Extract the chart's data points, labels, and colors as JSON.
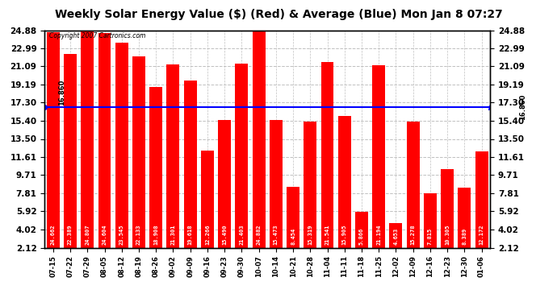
{
  "title": "Weekly Solar Energy Value ($) (Red) & Average (Blue) Mon Jan 8 07:27",
  "copyright": "Copyright 2007 Cartronics.com",
  "categories": [
    "07-15",
    "07-22",
    "07-29",
    "08-05",
    "08-12",
    "08-19",
    "08-26",
    "09-02",
    "09-09",
    "09-16",
    "09-23",
    "09-30",
    "10-07",
    "10-14",
    "10-21",
    "10-28",
    "11-04",
    "11-11",
    "11-18",
    "11-25",
    "12-02",
    "12-09",
    "12-16",
    "12-23",
    "12-30",
    "01-06"
  ],
  "values": [
    24.662,
    22.389,
    24.807,
    24.604,
    23.545,
    22.133,
    18.908,
    21.301,
    19.618,
    12.266,
    15.49,
    21.403,
    24.882,
    15.473,
    8.454,
    15.319,
    21.541,
    15.905,
    5.866,
    21.194,
    4.653,
    15.278,
    7.815,
    10.305,
    8.389,
    12.172
  ],
  "average": 16.86,
  "yticks": [
    2.12,
    4.02,
    5.92,
    7.81,
    9.71,
    11.61,
    13.5,
    15.4,
    17.3,
    19.19,
    21.09,
    22.99,
    24.88
  ],
  "ymin": 2.12,
  "ymax": 24.88,
  "bar_color": "#FF0000",
  "avg_line_color": "#0000FF",
  "bg_color": "#FFFFFF",
  "plot_bg_color": "#FFFFFF",
  "grid_color": "#C0C0C0",
  "title_fontsize": 10,
  "label_fontsize": 6,
  "value_fontsize": 5,
  "tick_fontsize": 7.5,
  "avg_label": "16.860"
}
